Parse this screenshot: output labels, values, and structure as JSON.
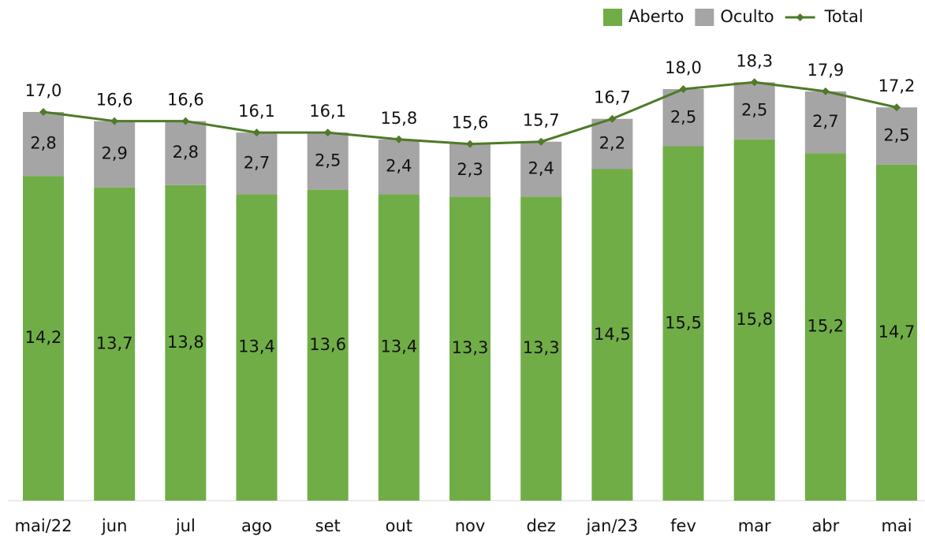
{
  "chart_data": {
    "type": "bar",
    "stacked": true,
    "categories": [
      "mai/22",
      "jun",
      "jul",
      "ago",
      "set",
      "out",
      "nov",
      "dez",
      "jan/23",
      "fev",
      "mar",
      "abr",
      "mai"
    ],
    "series": [
      {
        "name": "Aberto",
        "type": "bar",
        "color": "#70ad47",
        "values": [
          14.2,
          13.7,
          13.8,
          13.4,
          13.6,
          13.4,
          13.3,
          13.3,
          14.5,
          15.5,
          15.8,
          15.2,
          14.7
        ],
        "value_labels": [
          "14,2",
          "13,7",
          "13,8",
          "13,4",
          "13,6",
          "13,4",
          "13,3",
          "13,3",
          "14,5",
          "15,5",
          "15,8",
          "15,2",
          "14,7"
        ]
      },
      {
        "name": "Oculto",
        "type": "bar",
        "color": "#a5a5a5",
        "values": [
          2.8,
          2.9,
          2.8,
          2.7,
          2.5,
          2.4,
          2.3,
          2.4,
          2.2,
          2.5,
          2.5,
          2.7,
          2.5
        ],
        "value_labels": [
          "2,8",
          "2,9",
          "2,8",
          "2,7",
          "2,5",
          "2,4",
          "2,3",
          "2,4",
          "2,2",
          "2,5",
          "2,5",
          "2,7",
          "2,5"
        ]
      },
      {
        "name": "Total",
        "type": "line",
        "color": "#4f7a28",
        "values": [
          17.0,
          16.6,
          16.6,
          16.1,
          16.1,
          15.8,
          15.6,
          15.7,
          16.7,
          18.0,
          18.3,
          17.9,
          17.2
        ],
        "value_labels": [
          "17,0",
          "16,6",
          "16,6",
          "16,1",
          "16,1",
          "15,8",
          "15,6",
          "15,7",
          "16,7",
          "18,0",
          "18,3",
          "17,9",
          "17,2"
        ]
      }
    ],
    "ylim": [
      0,
      19
    ],
    "legend": "top-right"
  }
}
